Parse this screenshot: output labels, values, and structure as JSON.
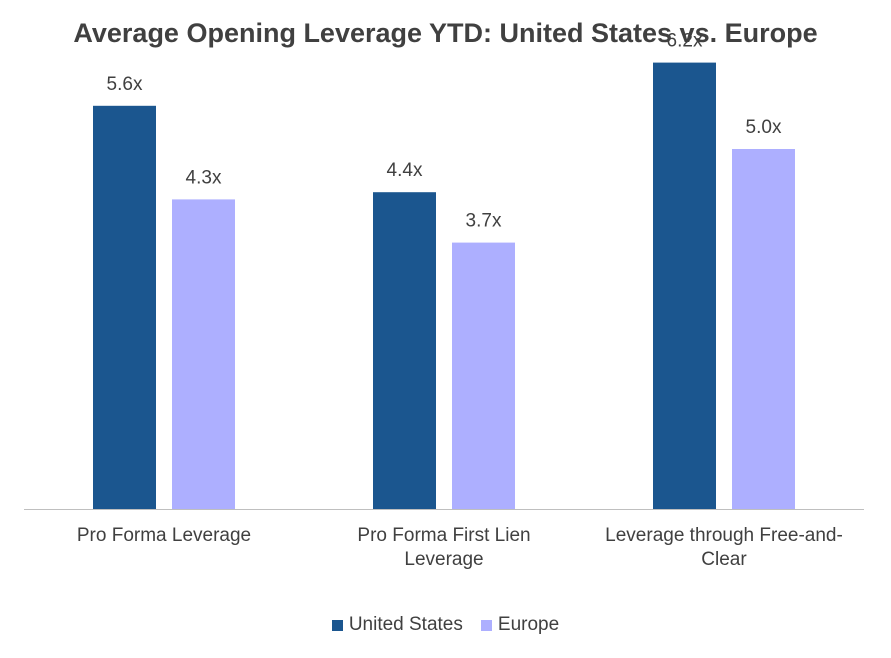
{
  "chart_data": {
    "type": "bar",
    "title": "Average Opening Leverage YTD: United States vs. Europe",
    "categories": [
      [
        "Pro Forma Leverage"
      ],
      [
        "Pro Forma First Lien",
        "Leverage"
      ],
      [
        "Leverage through Free-and-",
        "Clear"
      ]
    ],
    "series": [
      {
        "name": "United States",
        "color": "#1B568F",
        "values": [
          5.6,
          4.4,
          6.2
        ],
        "labels": [
          "5.6x",
          "4.4x",
          "6.2x"
        ]
      },
      {
        "name": "Europe",
        "color": "#ADAFFF",
        "values": [
          4.3,
          3.7,
          5.0
        ],
        "labels": [
          "4.3x",
          "3.7x",
          "5.0x"
        ]
      }
    ],
    "ylim": [
      0,
      7.3
    ],
    "legend_position": "bottom",
    "grid": false
  }
}
